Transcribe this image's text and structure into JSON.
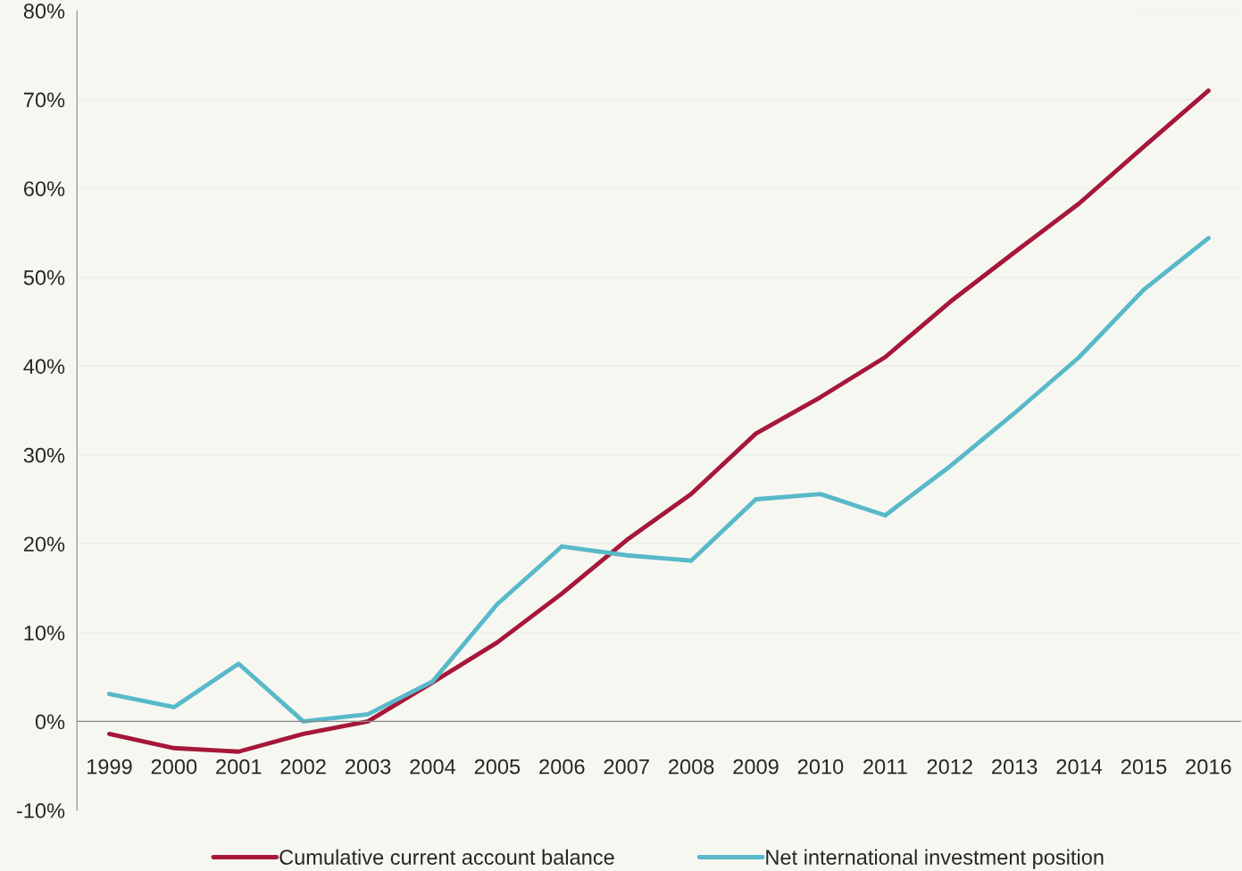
{
  "chart_data": {
    "type": "line",
    "categories": [
      "1999",
      "2000",
      "2001",
      "2002",
      "2003",
      "2004",
      "2005",
      "2006",
      "2007",
      "2008",
      "2009",
      "2010",
      "2011",
      "2012",
      "2013",
      "2014",
      "2015",
      "2016"
    ],
    "series": [
      {
        "name": "Cumulative current account balance",
        "color": "#a6173a",
        "values": [
          -1.4,
          -3.0,
          -3.4,
          -1.4,
          0,
          4.4,
          8.9,
          14.4,
          20.4,
          25.6,
          32.4,
          36.5,
          41.0,
          47.2,
          52.8,
          58.3,
          64.7,
          71.0
        ]
      },
      {
        "name": "Net international investment position",
        "color": "#58b9c9",
        "values": [
          3.1,
          1.6,
          6.5,
          0,
          0.8,
          4.5,
          13.2,
          19.7,
          18.7,
          18.1,
          25.0,
          25.6,
          23.2,
          28.7,
          34.7,
          41.0,
          48.6,
          54.4
        ]
      }
    ],
    "ylim": [
      -10,
      80
    ],
    "yticks": [
      {
        "value": -10,
        "label": "-10%"
      },
      {
        "value": 0,
        "label": "0%"
      },
      {
        "value": 10,
        "label": "10%"
      },
      {
        "value": 20,
        "label": "20%"
      },
      {
        "value": 30,
        "label": "30%"
      },
      {
        "value": 40,
        "label": "40%"
      },
      {
        "value": 50,
        "label": "50%"
      },
      {
        "value": 60,
        "label": "60%"
      },
      {
        "value": 70,
        "label": "70%"
      },
      {
        "value": 80,
        "label": "80%"
      }
    ],
    "grid": "y",
    "legend": "bottom",
    "marker": "none",
    "line_style": "solid"
  }
}
